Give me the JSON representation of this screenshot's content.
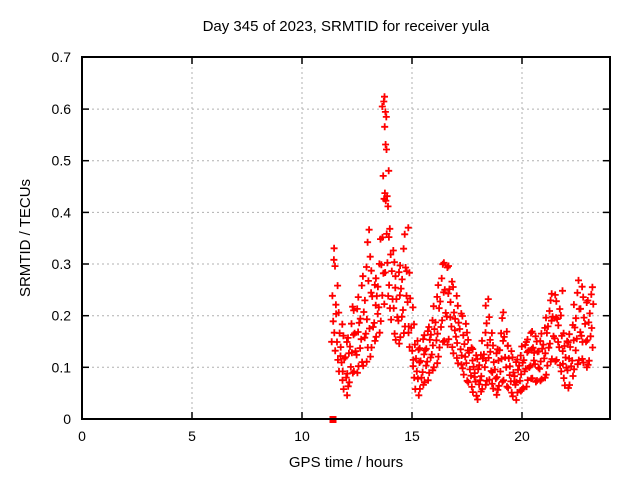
{
  "title": "Day 345 of 2023, SRMTID for receiver yula",
  "chart_data": {
    "type": "scatter",
    "title": "Day 345 of 2023, SRMTID for receiver yula",
    "xlabel": "GPS time / hours",
    "ylabel": "SRMTID / TECUs",
    "xlim": [
      0,
      24
    ],
    "ylim": [
      0,
      0.7
    ],
    "xtick_labels": [
      "0",
      "5",
      "10",
      "15",
      "20"
    ],
    "xtick_values": [
      0,
      5,
      10,
      15,
      20
    ],
    "ytick_labels": [
      "0",
      "0.1",
      "0.2",
      "0.3",
      "0.4",
      "0.5",
      "0.6",
      "0.7"
    ],
    "ytick_values": [
      0,
      0.1,
      0.2,
      0.3,
      0.4,
      0.5,
      0.6,
      0.7
    ],
    "grid": true,
    "grid_color": "#b0b0b0",
    "border_color": "#000000",
    "legend": "none",
    "marker": "plus",
    "marker_color": "#ff0000",
    "zero_point": {
      "x": 11.41,
      "y": 0,
      "shape": "filled-square"
    },
    "columns": [
      [
        11.4,
        [
          0.145,
          0.19,
          0.235,
          0.31
        ]
      ],
      [
        11.5,
        [
          0.13,
          0.17,
          0.22,
          0.3,
          0.33
        ]
      ],
      [
        11.6,
        [
          0.11,
          0.15,
          0.2,
          0.26
        ]
      ],
      [
        11.7,
        [
          0.09,
          0.125,
          0.165,
          0.21
        ]
      ],
      [
        11.8,
        [
          0.075,
          0.105,
          0.14,
          0.18
        ]
      ],
      [
        11.9,
        [
          0.06,
          0.09,
          0.12,
          0.16
        ]
      ],
      [
        12.0,
        [
          0.05,
          0.08,
          0.115,
          0.15
        ]
      ],
      [
        12.1,
        [
          0.06,
          0.09,
          0.125,
          0.16
        ]
      ],
      [
        12.2,
        [
          0.07,
          0.105,
          0.14,
          0.18
        ]
      ],
      [
        12.3,
        [
          0.09,
          0.125,
          0.165,
          0.215
        ]
      ],
      [
        12.4,
        [
          0.095,
          0.13,
          0.17,
          0.21
        ]
      ],
      [
        12.5,
        [
          0.085,
          0.125,
          0.165,
          0.215
        ]
      ],
      [
        12.6,
        [
          0.1,
          0.14,
          0.185,
          0.24
        ]
      ],
      [
        12.7,
        [
          0.11,
          0.15,
          0.195,
          0.255
        ]
      ],
      [
        12.8,
        [
          0.105,
          0.155,
          0.21,
          0.275
        ]
      ],
      [
        12.9,
        [
          0.115,
          0.165,
          0.225,
          0.295
        ]
      ],
      [
        13.0,
        [
          0.135,
          0.195,
          0.265,
          0.345,
          0.365
        ]
      ],
      [
        13.1,
        [
          0.125,
          0.175,
          0.24,
          0.315
        ]
      ],
      [
        13.2,
        [
          0.135,
          0.18,
          0.235,
          0.29
        ]
      ],
      [
        13.3,
        [
          0.15,
          0.19,
          0.22,
          0.255
        ]
      ],
      [
        13.4,
        [
          0.16,
          0.2,
          0.24,
          0.27
        ]
      ],
      [
        13.5,
        [
          0.17,
          0.215,
          0.26,
          0.3
        ]
      ],
      [
        13.6,
        [
          0.185,
          0.24,
          0.295,
          0.35
        ]
      ],
      [
        13.7,
        [
          0.22,
          0.285,
          0.35,
          0.43,
          0.47,
          0.6,
          0.615
        ]
      ],
      [
        13.8,
        [
          0.28,
          0.36,
          0.42,
          0.44,
          0.52,
          0.535,
          0.565,
          0.58,
          0.595,
          0.62
        ]
      ],
      [
        13.9,
        [
          0.24,
          0.3,
          0.355,
          0.41,
          0.435,
          0.48
        ]
      ],
      [
        14.0,
        [
          0.21,
          0.26,
          0.315,
          0.37
        ]
      ],
      [
        14.1,
        [
          0.19,
          0.235,
          0.285,
          0.33
        ]
      ],
      [
        14.2,
        [
          0.165,
          0.21,
          0.255,
          0.3
        ]
      ],
      [
        14.3,
        [
          0.155,
          0.195,
          0.235,
          0.275
        ]
      ],
      [
        14.4,
        [
          0.15,
          0.19,
          0.235,
          0.285
        ]
      ],
      [
        14.5,
        [
          0.155,
          0.2,
          0.25,
          0.3
        ]
      ],
      [
        14.6,
        [
          0.165,
          0.215,
          0.27,
          0.325
        ]
      ],
      [
        14.7,
        [
          0.18,
          0.235,
          0.295,
          0.355
        ]
      ],
      [
        14.8,
        [
          0.17,
          0.225,
          0.29,
          0.37
        ]
      ],
      [
        14.9,
        [
          0.135,
          0.18,
          0.23,
          0.285
        ]
      ],
      [
        15.0,
        [
          0.1,
          0.135,
          0.175,
          0.22
        ]
      ],
      [
        15.1,
        [
          0.08,
          0.11,
          0.145,
          0.18
        ]
      ],
      [
        15.2,
        [
          0.06,
          0.09,
          0.12,
          0.15
        ]
      ],
      [
        15.3,
        [
          0.05,
          0.078,
          0.105,
          0.135
        ]
      ],
      [
        15.4,
        [
          0.055,
          0.082,
          0.11,
          0.14
        ]
      ],
      [
        15.5,
        [
          0.065,
          0.095,
          0.125,
          0.15
        ]
      ],
      [
        15.6,
        [
          0.072,
          0.1,
          0.135,
          0.16
        ]
      ],
      [
        15.7,
        [
          0.078,
          0.11,
          0.14,
          0.17
        ]
      ],
      [
        15.8,
        [
          0.085,
          0.12,
          0.15,
          0.18
        ]
      ],
      [
        15.9,
        [
          0.092,
          0.128,
          0.162,
          0.195
        ]
      ],
      [
        16.0,
        [
          0.1,
          0.138,
          0.175,
          0.215
        ]
      ],
      [
        16.1,
        [
          0.11,
          0.15,
          0.19,
          0.235
        ]
      ],
      [
        16.2,
        [
          0.125,
          0.165,
          0.21,
          0.26
        ]
      ],
      [
        16.3,
        [
          0.135,
          0.18,
          0.225,
          0.275
        ]
      ],
      [
        16.4,
        [
          0.148,
          0.195,
          0.245,
          0.295
        ]
      ],
      [
        16.5,
        [
          0.152,
          0.202,
          0.252,
          0.3
        ]
      ],
      [
        16.6,
        [
          0.147,
          0.197,
          0.247,
          0.293
        ]
      ],
      [
        16.7,
        [
          0.15,
          0.198,
          0.248,
          0.298
        ]
      ],
      [
        16.8,
        [
          0.137,
          0.182,
          0.225,
          0.27
        ]
      ],
      [
        16.9,
        [
          0.127,
          0.167,
          0.207,
          0.252
        ]
      ],
      [
        17.0,
        [
          0.12,
          0.157,
          0.197,
          0.237
        ]
      ],
      [
        17.1,
        [
          0.112,
          0.147,
          0.182,
          0.22
        ]
      ],
      [
        17.2,
        [
          0.102,
          0.137,
          0.172,
          0.207
        ]
      ],
      [
        17.3,
        [
          0.097,
          0.127,
          0.162,
          0.195
        ]
      ],
      [
        17.4,
        [
          0.087,
          0.117,
          0.147,
          0.182
        ]
      ],
      [
        17.5,
        [
          0.077,
          0.107,
          0.137,
          0.167
        ]
      ],
      [
        17.6,
        [
          0.067,
          0.097,
          0.125,
          0.155
        ]
      ],
      [
        17.7,
        [
          0.06,
          0.087,
          0.112,
          0.142
        ]
      ],
      [
        17.8,
        [
          0.052,
          0.077,
          0.102,
          0.132
        ]
      ],
      [
        17.9,
        [
          0.047,
          0.07,
          0.092,
          0.122
        ]
      ],
      [
        18.0,
        [
          0.042,
          0.067,
          0.092,
          0.117
        ]
      ],
      [
        18.1,
        [
          0.05,
          0.077,
          0.102,
          0.127
        ]
      ],
      [
        18.2,
        [
          0.057,
          0.087,
          0.117,
          0.147
        ]
      ],
      [
        18.3,
        [
          0.067,
          0.097,
          0.127,
          0.165
        ]
      ],
      [
        18.4,
        [
          0.077,
          0.112,
          0.147,
          0.185,
          0.215
        ]
      ],
      [
        18.5,
        [
          0.077,
          0.115,
          0.155,
          0.195,
          0.235
        ]
      ],
      [
        18.6,
        [
          0.067,
          0.097,
          0.13,
          0.162
        ]
      ],
      [
        18.7,
        [
          0.06,
          0.087,
          0.112,
          0.14
        ]
      ],
      [
        18.8,
        [
          0.05,
          0.077,
          0.1,
          0.127
        ]
      ],
      [
        18.9,
        [
          0.052,
          0.082,
          0.11,
          0.137
        ]
      ],
      [
        19.0,
        [
          0.062,
          0.095,
          0.132,
          0.17
        ]
      ],
      [
        19.1,
        [
          0.072,
          0.112,
          0.152,
          0.192
        ]
      ],
      [
        19.2,
        [
          0.077,
          0.117,
          0.162,
          0.205
        ]
      ],
      [
        19.3,
        [
          0.067,
          0.1,
          0.137,
          0.17
        ]
      ],
      [
        19.4,
        [
          0.057,
          0.087,
          0.115,
          0.145
        ]
      ],
      [
        19.5,
        [
          0.05,
          0.077,
          0.102,
          0.127
        ]
      ],
      [
        19.6,
        [
          0.045,
          0.07,
          0.092,
          0.117
        ]
      ],
      [
        19.7,
        [
          0.04,
          0.065,
          0.087,
          0.11
        ]
      ],
      [
        19.8,
        [
          0.047,
          0.072,
          0.092,
          0.117
        ]
      ],
      [
        19.9,
        [
          0.052,
          0.077,
          0.102,
          0.127
        ]
      ],
      [
        20.0,
        [
          0.057,
          0.082,
          0.11,
          0.137
        ]
      ],
      [
        20.1,
        [
          0.062,
          0.09,
          0.117,
          0.142
        ]
      ],
      [
        20.2,
        [
          0.067,
          0.097,
          0.125,
          0.15
        ]
      ],
      [
        20.3,
        [
          0.072,
          0.102,
          0.13,
          0.157
        ]
      ],
      [
        20.4,
        [
          0.077,
          0.107,
          0.135,
          0.162
        ]
      ],
      [
        20.5,
        [
          0.08,
          0.11,
          0.14,
          0.167
        ]
      ],
      [
        20.6,
        [
          0.075,
          0.105,
          0.132,
          0.16
        ]
      ],
      [
        20.7,
        [
          0.07,
          0.1,
          0.127,
          0.152
        ]
      ],
      [
        20.8,
        [
          0.072,
          0.1,
          0.13,
          0.155
        ]
      ],
      [
        20.9,
        [
          0.077,
          0.107,
          0.137,
          0.162
        ]
      ],
      [
        21.0,
        [
          0.082,
          0.115,
          0.147,
          0.175
        ]
      ],
      [
        21.1,
        [
          0.09,
          0.127,
          0.162,
          0.197
        ]
      ],
      [
        21.2,
        [
          0.1,
          0.14,
          0.177,
          0.212
        ]
      ],
      [
        21.3,
        [
          0.11,
          0.15,
          0.19,
          0.225
        ]
      ],
      [
        21.4,
        [
          0.117,
          0.157,
          0.2,
          0.24
        ]
      ],
      [
        21.5,
        [
          0.115,
          0.155,
          0.2,
          0.24
        ]
      ],
      [
        21.6,
        [
          0.11,
          0.15,
          0.19,
          0.23
        ]
      ],
      [
        21.7,
        [
          0.102,
          0.142,
          0.18,
          0.217
        ]
      ],
      [
        21.8,
        [
          0.092,
          0.127,
          0.162,
          0.197,
          0.25
        ]
      ],
      [
        21.9,
        [
          0.077,
          0.11,
          0.14,
          0.17
        ]
      ],
      [
        22.0,
        [
          0.065,
          0.095,
          0.12,
          0.147
        ]
      ],
      [
        22.1,
        [
          0.062,
          0.092,
          0.12,
          0.147
        ]
      ],
      [
        22.2,
        [
          0.07,
          0.102,
          0.135,
          0.165
        ]
      ],
      [
        22.3,
        [
          0.08,
          0.115,
          0.15,
          0.185
        ]
      ],
      [
        22.4,
        [
          0.095,
          0.137,
          0.177,
          0.217
        ]
      ],
      [
        22.5,
        [
          0.107,
          0.152,
          0.197,
          0.242
        ]
      ],
      [
        22.6,
        [
          0.117,
          0.167,
          0.217,
          0.268
        ]
      ],
      [
        22.7,
        [
          0.112,
          0.162,
          0.21,
          0.258
        ]
      ],
      [
        22.8,
        [
          0.107,
          0.152,
          0.195,
          0.24
        ]
      ],
      [
        22.9,
        [
          0.1,
          0.145,
          0.185,
          0.222
        ]
      ],
      [
        23.0,
        [
          0.107,
          0.15,
          0.19,
          0.228
        ]
      ],
      [
        23.1,
        [
          0.117,
          0.16,
          0.2,
          0.242
        ]
      ],
      [
        23.2,
        [
          0.135,
          0.178,
          0.22,
          0.258
        ]
      ]
    ]
  }
}
